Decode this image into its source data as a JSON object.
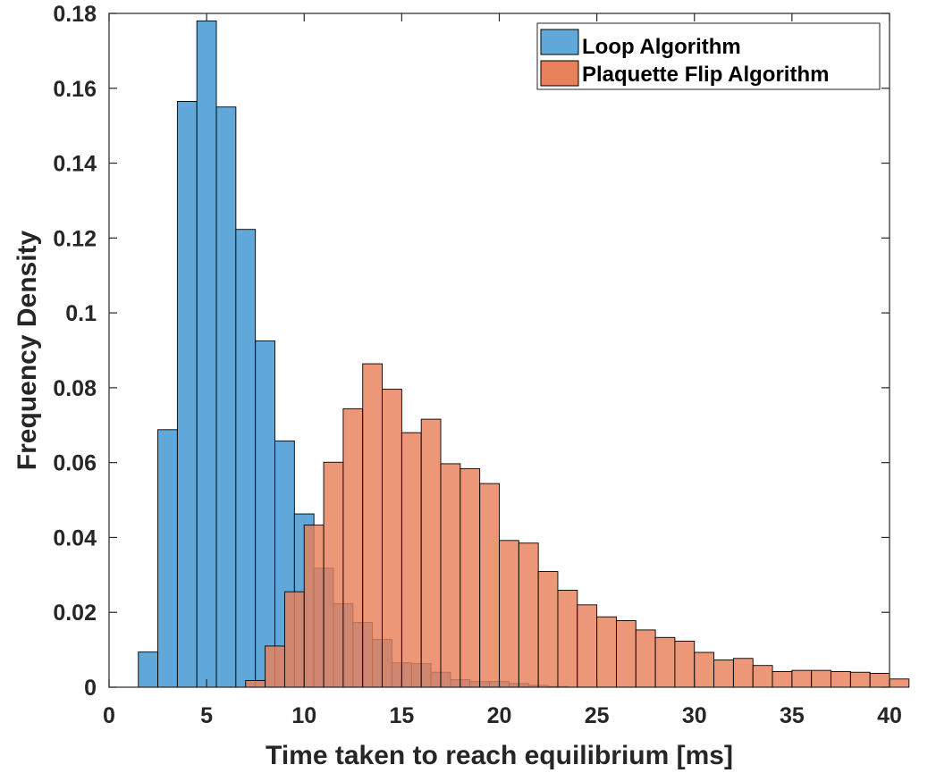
{
  "chart_data": {
    "type": "bar",
    "xlabel": "Time taken to reach equilibrium [ms]",
    "ylabel": "Frequency Density",
    "xlim": [
      0,
      40
    ],
    "ylim": [
      0,
      0.18
    ],
    "xticks": [
      "0",
      "5",
      "10",
      "15",
      "20",
      "25",
      "30",
      "35",
      "40"
    ],
    "yticks": [
      "0",
      "0.02",
      "0.04",
      "0.06",
      "0.08",
      "0.1",
      "0.12",
      "0.14",
      "0.16",
      "0.18"
    ],
    "grid": false,
    "legend_position": "top-right",
    "series": [
      {
        "name": "Loop Algorithm",
        "color": "#5fa8d9",
        "opacity": 1.0,
        "bin_width": 1.0,
        "bin_edges_start": 1.5,
        "values": [
          0.0094,
          0.0688,
          0.1565,
          0.178,
          0.155,
          0.1223,
          0.0925,
          0.0658,
          0.0463,
          0.0318,
          0.0223,
          0.0173,
          0.0128,
          0.0065,
          0.0063,
          0.004,
          0.002,
          0.0015,
          0.0015,
          0.001,
          0.0005,
          0.0002
        ]
      },
      {
        "name": "Plaquette Flip Algorithm",
        "color": "#e8805a",
        "opacity": 0.82,
        "bin_width": 1.0,
        "bin_edges_start": 7.0,
        "values": [
          0.0018,
          0.011,
          0.0255,
          0.0433,
          0.0601,
          0.0744,
          0.0864,
          0.0796,
          0.068,
          0.0716,
          0.0597,
          0.0584,
          0.0544,
          0.0392,
          0.0385,
          0.0309,
          0.0259,
          0.022,
          0.0188,
          0.0178,
          0.0153,
          0.0133,
          0.0123,
          0.0093,
          0.0073,
          0.0077,
          0.0058,
          0.0042,
          0.0045,
          0.0045,
          0.0042,
          0.004,
          0.0037,
          0.0022
        ]
      }
    ]
  }
}
